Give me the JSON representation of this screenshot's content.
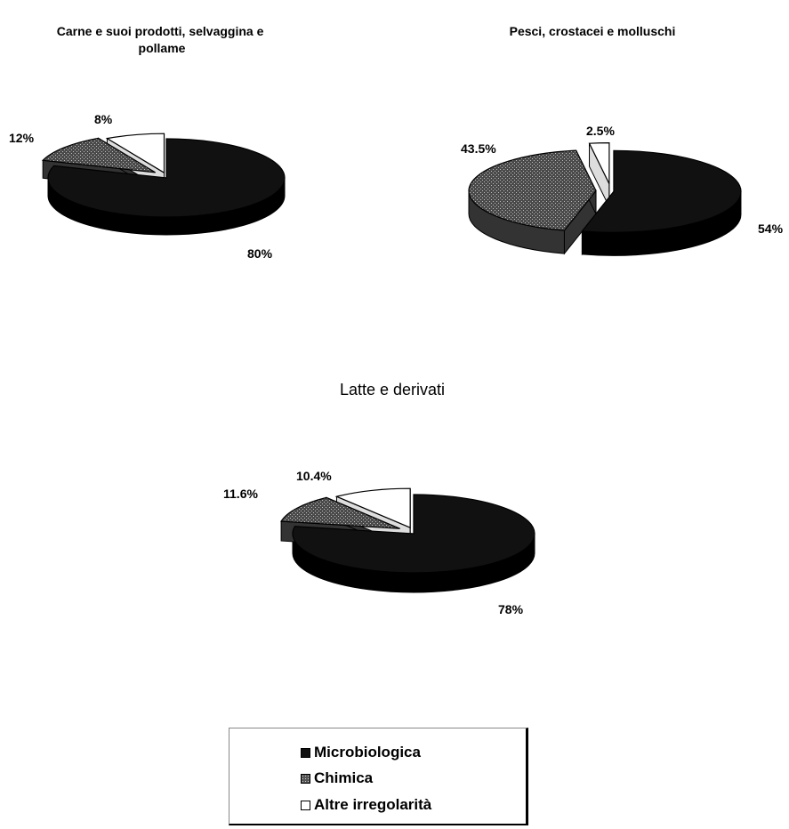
{
  "chart_data": [
    {
      "type": "pie",
      "title": "Carne e suoi prodotti, selvaggina e pollame",
      "slices": [
        {
          "category": "Microbiologica",
          "value": 80,
          "label": "80%"
        },
        {
          "category": "Chimica",
          "value": 12,
          "label": "12%"
        },
        {
          "category": "Altre irregolarità",
          "value": 8,
          "label": "8%"
        }
      ]
    },
    {
      "type": "pie",
      "title": "Pesci, crostacei e molluschi",
      "slices": [
        {
          "category": "Microbiologica",
          "value": 54,
          "label": "54%"
        },
        {
          "category": "Chimica",
          "value": 43.5,
          "label": "43.5%"
        },
        {
          "category": "Altre irregolarità",
          "value": 2.5,
          "label": "2.5%"
        }
      ]
    },
    {
      "type": "pie",
      "title": "Latte e derivati",
      "slices": [
        {
          "category": "Microbiologica",
          "value": 78,
          "label": "78%"
        },
        {
          "category": "Chimica",
          "value": 11.6,
          "label": "11.6%"
        },
        {
          "category": "Altre irregolarità",
          "value": 10.4,
          "label": "10.4%"
        }
      ]
    }
  ],
  "legend": {
    "position": "bottom-center",
    "items": [
      {
        "label": "Microbiologica",
        "color": "#111111"
      },
      {
        "label": "Chimica",
        "color": "#666666"
      },
      {
        "label": "Altre irregolarità",
        "color": "#ffffff"
      }
    ]
  },
  "colors": {
    "microbiologica": "#111111",
    "chimica": "#555555",
    "altre": "#ffffff"
  }
}
